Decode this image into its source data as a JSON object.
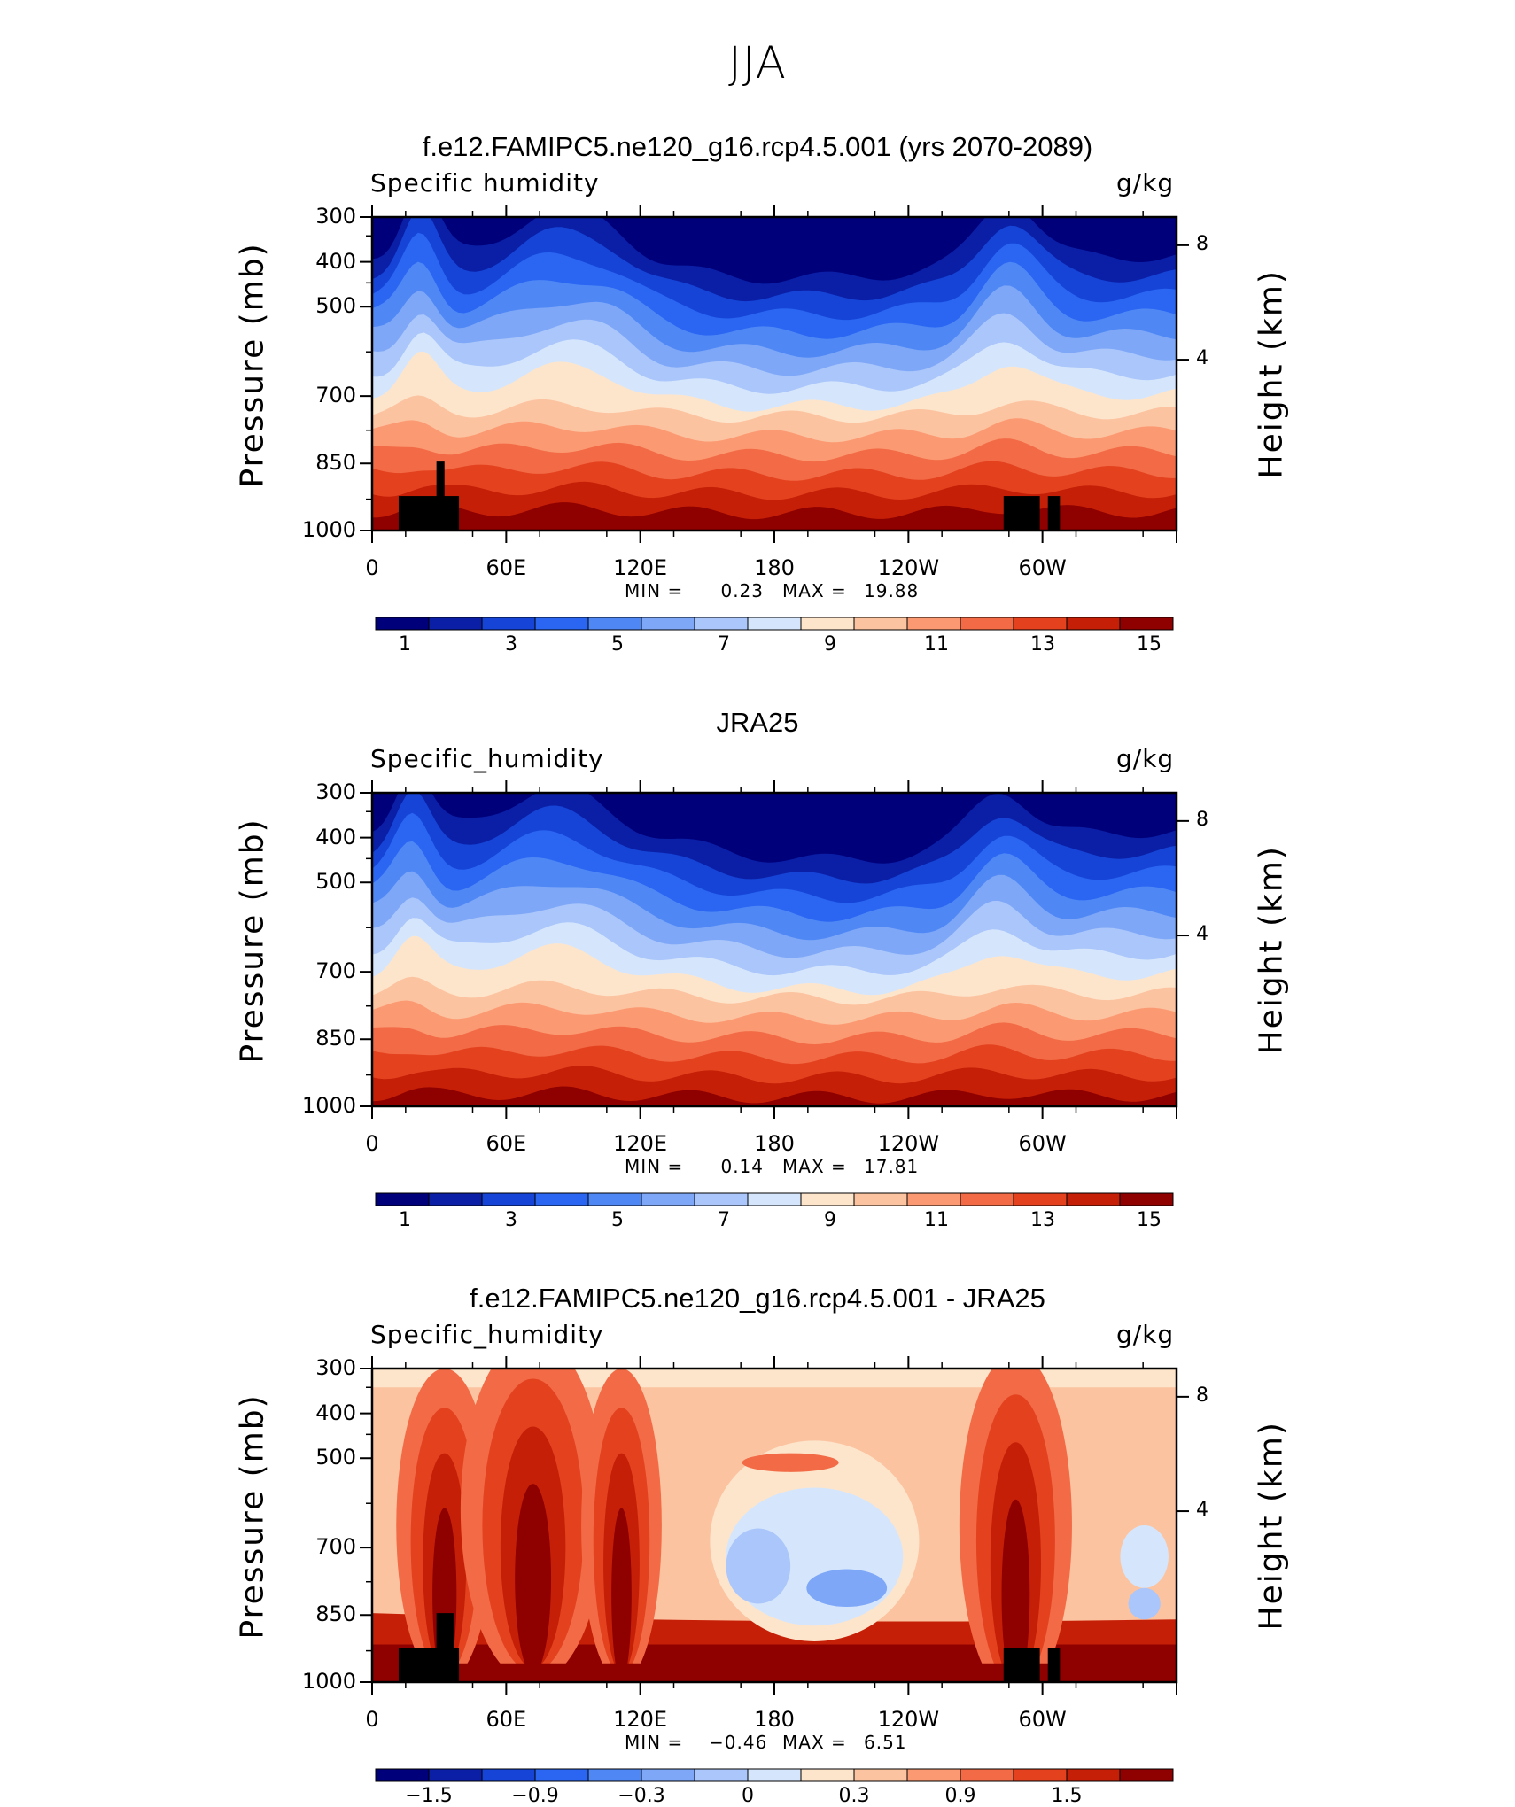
{
  "page": {
    "title": "JJA"
  },
  "colorbar_colors": [
    "#00007a",
    "#0a1fa6",
    "#1544d6",
    "#2a66f2",
    "#4f88f5",
    "#7ea7f7",
    "#aac6fa",
    "#d5e6fc",
    "#fde5cc",
    "#fcc3a0",
    "#fb9a72",
    "#f26b46",
    "#e4421f",
    "#c52007",
    "#8f0000"
  ],
  "chart_data": [
    {
      "type": "heatmap",
      "title": "f.e12.FAMIPC5.ne120_g16.rcp4.5.001 (yrs 2070-2089)",
      "variable": "Specific humidity",
      "units": "g/kg",
      "ylabel": "Pressure (mb)",
      "ylabel_right": "Height (km)",
      "y_ticks": [
        "300",
        "400",
        "500",
        "700",
        "850",
        "1000"
      ],
      "y_ticks_right": [
        "8",
        "4"
      ],
      "x_ticks": [
        "0",
        "60E",
        "120E",
        "180",
        "120W",
        "60W"
      ],
      "min_label": "MIN =",
      "min_value": "0.23",
      "max_label": "MAX =",
      "max_value": "19.88",
      "colorbar_labels": [
        "1",
        "3",
        "5",
        "7",
        "9",
        "11",
        "13",
        "15"
      ]
    },
    {
      "type": "heatmap",
      "title": "JRA25",
      "variable": "Specific_humidity",
      "units": "g/kg",
      "ylabel": "Pressure (mb)",
      "ylabel_right": "Height (km)",
      "y_ticks": [
        "300",
        "400",
        "500",
        "700",
        "850",
        "1000"
      ],
      "y_ticks_right": [
        "8",
        "4"
      ],
      "x_ticks": [
        "0",
        "60E",
        "120E",
        "180",
        "120W",
        "60W"
      ],
      "min_label": "MIN =",
      "min_value": "0.14",
      "max_label": "MAX =",
      "max_value": "17.81",
      "colorbar_labels": [
        "1",
        "3",
        "5",
        "7",
        "9",
        "11",
        "13",
        "15"
      ]
    },
    {
      "type": "heatmap",
      "title": "f.e12.FAMIPC5.ne120_g16.rcp4.5.001 - JRA25",
      "variable": "Specific_humidity",
      "units": "g/kg",
      "ylabel": "Pressure (mb)",
      "ylabel_right": "Height (km)",
      "y_ticks": [
        "300",
        "400",
        "500",
        "700",
        "850",
        "1000"
      ],
      "y_ticks_right": [
        "8",
        "4"
      ],
      "x_ticks": [
        "0",
        "60E",
        "120E",
        "180",
        "120W",
        "60W"
      ],
      "min_label": "MIN =",
      "min_value": "−0.46",
      "max_label": "MAX =",
      "max_value": "6.51",
      "colorbar_labels": [
        "−1.5",
        "−0.9",
        "−0.3",
        "0",
        "0.3",
        "0.9",
        "1.5"
      ]
    }
  ]
}
